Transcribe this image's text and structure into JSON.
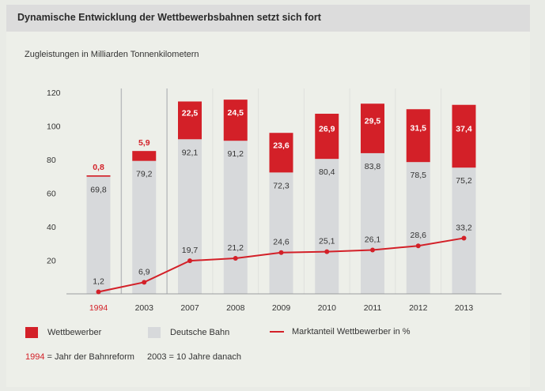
{
  "header": {
    "title": "Dynamische Entwicklung der Wettbewerbsbahnen setzt sich fort"
  },
  "chart_data": {
    "type": "bar",
    "subtitle": "Zugleistungen in Milliarden Tonnenkilometern",
    "categories": [
      "1994",
      "2003",
      "2007",
      "2008",
      "2009",
      "2010",
      "2011",
      "2012",
      "2013"
    ],
    "highlight_category": "1994",
    "ylim": [
      0,
      120
    ],
    "yticks": [
      "20",
      "40",
      "60",
      "80",
      "100",
      "120"
    ],
    "grid": false,
    "series": [
      {
        "name": "Deutsche Bahn",
        "type": "stacked-bar",
        "color": "#d7d9db",
        "values": [
          69.8,
          79.2,
          92.1,
          91.2,
          72.3,
          80.4,
          83.8,
          78.5,
          75.2
        ],
        "labels": [
          "69,8",
          "79,2",
          "92,1",
          "91,2",
          "72,3",
          "80,4",
          "83,8",
          "78,5",
          "75,2"
        ]
      },
      {
        "name": "Wettbewerber",
        "type": "stacked-bar",
        "color": "#d32028",
        "values": [
          0.8,
          5.9,
          22.5,
          24.5,
          23.6,
          26.9,
          29.5,
          31.5,
          37.4
        ],
        "labels": [
          "0,8",
          "5,9",
          "22,5",
          "24,5",
          "23,6",
          "26,9",
          "29,5",
          "31,5",
          "37,4"
        ]
      },
      {
        "name": "Marktanteil Wettbewerber in %",
        "type": "line",
        "color": "#d32028",
        "values": [
          1.2,
          6.9,
          19.7,
          21.2,
          24.6,
          25.1,
          26.1,
          28.6,
          33.2
        ],
        "labels": [
          "1,2",
          "6,9",
          "19,7",
          "21,2",
          "24,6",
          "25,1",
          "26,1",
          "28,6",
          "33,2"
        ]
      }
    ]
  },
  "legend": {
    "wettbewerber": "Wettbewerber",
    "db": "Deutsche Bahn",
    "marktanteil": "Marktanteil Wettbewerber in %"
  },
  "footnote": {
    "year1": "1994",
    "text1": " = Jahr der Bahnreform",
    "text2": "2003 = 10 Jahre danach"
  },
  "colors": {
    "red": "#d32028",
    "grey": "#d7d9db"
  }
}
